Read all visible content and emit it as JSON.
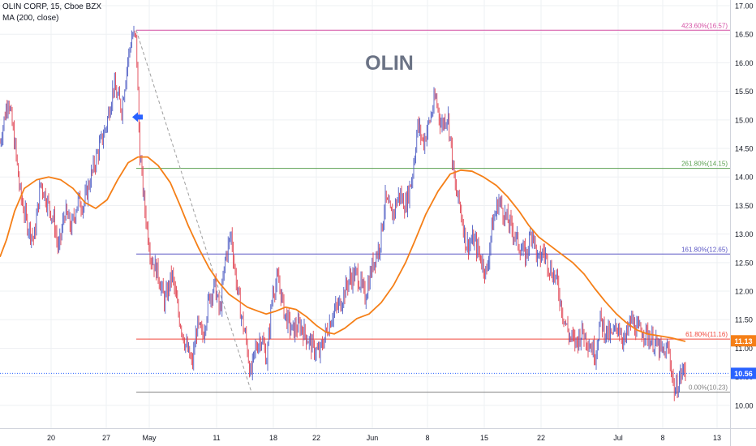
{
  "header": {
    "symbol": "OLIN CORP, 15, Cboe BZX",
    "indicator": "MA (200, close)"
  },
  "annotation": {
    "text": "OLIN"
  },
  "colors": {
    "up": "#4f5ec4",
    "down": "#e04352",
    "ma": "#f57f17",
    "grid": "#eef0f3",
    "axis_text": "#131722",
    "level_423": "#d44fa4",
    "level_261": "#5aa050",
    "level_161": "#5a56c4",
    "level_61": "#f0483c",
    "level_0": "#808080",
    "last_price": "#2962ff",
    "arrow": "#2962ff",
    "trend": "#9e9e9e"
  },
  "chart_data": {
    "type": "candlestick",
    "title": "",
    "xlabel": "",
    "ylabel": "",
    "ylim": [
      9.6,
      17.1
    ],
    "y_ticks": [
      "10.00",
      "10.50",
      "11.00",
      "11.50",
      "12.00",
      "12.50",
      "13.00",
      "13.50",
      "14.00",
      "14.50",
      "15.00",
      "15.50",
      "16.00",
      "16.50",
      "17.00"
    ],
    "x_ticks": [
      {
        "label": "20",
        "t": 63
      },
      {
        "label": "27",
        "t": 131
      },
      {
        "label": "May",
        "t": 184
      },
      {
        "label": "11",
        "t": 267
      },
      {
        "label": "18",
        "t": 337
      },
      {
        "label": "22",
        "t": 390
      },
      {
        "label": "Jun",
        "t": 459
      },
      {
        "label": "8",
        "t": 527
      },
      {
        "label": "15",
        "t": 597
      },
      {
        "label": "22",
        "t": 667
      },
      {
        "label": "Jul",
        "t": 762
      },
      {
        "label": "8",
        "t": 817
      },
      {
        "label": "13",
        "t": 884
      }
    ],
    "t_range": [
      0,
      900
    ],
    "price_path": [
      [
        0,
        14.6
      ],
      [
        10,
        15.4
      ],
      [
        18,
        14.6
      ],
      [
        25,
        13.7
      ],
      [
        33,
        13.2
      ],
      [
        42,
        12.9
      ],
      [
        50,
        13.9
      ],
      [
        60,
        13.5
      ],
      [
        67,
        13.2
      ],
      [
        72,
        12.7
      ],
      [
        80,
        13.4
      ],
      [
        88,
        13.1
      ],
      [
        96,
        13.6
      ],
      [
        103,
        13.5
      ],
      [
        112,
        14.0
      ],
      [
        122,
        14.5
      ],
      [
        131,
        14.9
      ],
      [
        140,
        15.6
      ],
      [
        150,
        15.2
      ],
      [
        157,
        16.0
      ],
      [
        163,
        16.5
      ],
      [
        168,
        16.4
      ],
      [
        172,
        14.5
      ],
      [
        178,
        13.5
      ],
      [
        186,
        12.6
      ],
      [
        195,
        12.3
      ],
      [
        203,
        11.8
      ],
      [
        212,
        12.3
      ],
      [
        220,
        11.6
      ],
      [
        228,
        11.1
      ],
      [
        237,
        10.7
      ],
      [
        243,
        11.4
      ],
      [
        250,
        11.2
      ],
      [
        258,
        11.9
      ],
      [
        265,
        12.1
      ],
      [
        271,
        11.6
      ],
      [
        278,
        12.6
      ],
      [
        285,
        13.0
      ],
      [
        290,
        12.3
      ],
      [
        297,
        11.6
      ],
      [
        304,
        11.1
      ],
      [
        309,
        10.5
      ],
      [
        315,
        11.0
      ],
      [
        322,
        11.2
      ],
      [
        329,
        10.8
      ],
      [
        336,
        12.0
      ],
      [
        343,
        12.2
      ],
      [
        351,
        11.6
      ],
      [
        360,
        11.3
      ],
      [
        370,
        11.4
      ],
      [
        378,
        11.2
      ],
      [
        386,
        11.0
      ],
      [
        394,
        10.9
      ],
      [
        400,
        11.2
      ],
      [
        410,
        11.6
      ],
      [
        420,
        11.8
      ],
      [
        430,
        12.2
      ],
      [
        440,
        12.3
      ],
      [
        450,
        11.9
      ],
      [
        460,
        12.5
      ],
      [
        468,
        12.8
      ],
      [
        475,
        13.6
      ],
      [
        483,
        13.3
      ],
      [
        492,
        13.7
      ],
      [
        500,
        13.5
      ],
      [
        508,
        14.0
      ],
      [
        515,
        14.9
      ],
      [
        522,
        14.6
      ],
      [
        530,
        15.0
      ],
      [
        537,
        15.4
      ],
      [
        544,
        14.9
      ],
      [
        552,
        15.1
      ],
      [
        557,
        14.4
      ],
      [
        561,
        13.8
      ],
      [
        567,
        13.5
      ],
      [
        575,
        12.8
      ],
      [
        584,
        12.9
      ],
      [
        592,
        12.6
      ],
      [
        600,
        12.3
      ],
      [
        606,
        13.1
      ],
      [
        615,
        13.6
      ],
      [
        623,
        13.3
      ],
      [
        631,
        13.1
      ],
      [
        640,
        12.8
      ],
      [
        648,
        12.6
      ],
      [
        656,
        13.1
      ],
      [
        663,
        12.5
      ],
      [
        670,
        12.7
      ],
      [
        678,
        12.4
      ],
      [
        686,
        12.2
      ],
      [
        694,
        11.6
      ],
      [
        702,
        11.2
      ],
      [
        710,
        11.1
      ],
      [
        718,
        11.3
      ],
      [
        726,
        11.1
      ],
      [
        734,
        10.9
      ],
      [
        740,
        11.5
      ],
      [
        746,
        11.3
      ],
      [
        754,
        11.2
      ],
      [
        762,
        11.4
      ],
      [
        770,
        11.1
      ],
      [
        778,
        11.5
      ],
      [
        786,
        11.3
      ],
      [
        794,
        11.3
      ],
      [
        800,
        11.2
      ],
      [
        806,
        11.1
      ],
      [
        812,
        11.0
      ],
      [
        818,
        10.9
      ],
      [
        824,
        11.0
      ],
      [
        828,
        10.6
      ],
      [
        832,
        10.2
      ],
      [
        836,
        10.4
      ],
      [
        841,
        10.6
      ],
      [
        845,
        10.6
      ]
    ],
    "ma_path": [
      [
        0,
        12.6
      ],
      [
        8,
        12.9
      ],
      [
        18,
        13.4
      ],
      [
        30,
        13.8
      ],
      [
        45,
        13.95
      ],
      [
        60,
        14.0
      ],
      [
        75,
        13.95
      ],
      [
        90,
        13.8
      ],
      [
        105,
        13.55
      ],
      [
        118,
        13.45
      ],
      [
        132,
        13.6
      ],
      [
        145,
        13.95
      ],
      [
        158,
        14.25
      ],
      [
        170,
        14.35
      ],
      [
        182,
        14.35
      ],
      [
        195,
        14.2
      ],
      [
        210,
        13.9
      ],
      [
        222,
        13.5
      ],
      [
        232,
        13.15
      ],
      [
        245,
        12.75
      ],
      [
        258,
        12.4
      ],
      [
        270,
        12.15
      ],
      [
        282,
        11.95
      ],
      [
        295,
        11.82
      ],
      [
        305,
        11.72
      ],
      [
        318,
        11.65
      ],
      [
        328,
        11.6
      ],
      [
        340,
        11.65
      ],
      [
        352,
        11.72
      ],
      [
        365,
        11.68
      ],
      [
        378,
        11.55
      ],
      [
        390,
        11.4
      ],
      [
        402,
        11.28
      ],
      [
        412,
        11.25
      ],
      [
        425,
        11.35
      ],
      [
        440,
        11.52
      ],
      [
        455,
        11.6
      ],
      [
        470,
        11.8
      ],
      [
        485,
        12.1
      ],
      [
        500,
        12.5
      ],
      [
        512,
        12.9
      ],
      [
        525,
        13.35
      ],
      [
        540,
        13.75
      ],
      [
        555,
        14.05
      ],
      [
        568,
        14.12
      ],
      [
        582,
        14.1
      ],
      [
        596,
        14.0
      ],
      [
        612,
        13.85
      ],
      [
        626,
        13.65
      ],
      [
        640,
        13.4
      ],
      [
        652,
        13.15
      ],
      [
        664,
        12.95
      ],
      [
        678,
        12.8
      ],
      [
        692,
        12.65
      ],
      [
        706,
        12.5
      ],
      [
        720,
        12.3
      ],
      [
        733,
        12.05
      ],
      [
        746,
        11.82
      ],
      [
        760,
        11.6
      ],
      [
        772,
        11.45
      ],
      [
        785,
        11.32
      ],
      [
        798,
        11.25
      ],
      [
        812,
        11.22
      ],
      [
        828,
        11.18
      ],
      [
        845,
        11.12
      ]
    ],
    "last_price": "10.56",
    "last_price_value": 10.56,
    "ma_last": "11.13",
    "ma_last_value": 11.13,
    "levels": [
      {
        "label": "423.60%(16.57)",
        "value": 16.57,
        "color_key": "level_423"
      },
      {
        "label": "261.80%(14.15)",
        "value": 14.15,
        "color_key": "level_261"
      },
      {
        "label": "161.80%(12.65)",
        "value": 12.65,
        "color_key": "level_161"
      },
      {
        "label": "61.80%(11.16)",
        "value": 11.16,
        "color_key": "level_61"
      },
      {
        "label": "0.00%(10.23)",
        "value": 10.23,
        "color_key": "level_0"
      }
    ],
    "levels_t_start": 168,
    "trend_line": [
      [
        168,
        16.57
      ],
      [
        310,
        10.23
      ]
    ],
    "arrow_at": {
      "t": 163,
      "value": 15.05
    }
  }
}
